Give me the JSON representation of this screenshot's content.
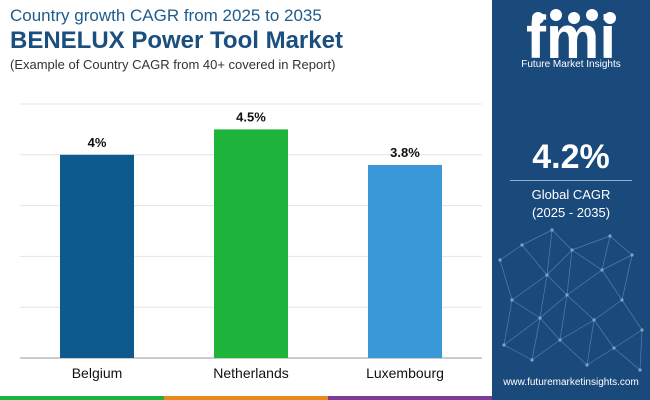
{
  "header": {
    "line1": "Country growth CAGR from 2025 to 2035",
    "line2": "BENELUX Power Tool Market",
    "subtitle": "(Example of Country CAGR from 40+ covered in Report)"
  },
  "chart_data": {
    "type": "bar",
    "categories": [
      "Belgium",
      "Netherlands",
      "Luxembourg"
    ],
    "values": [
      4,
      4.5,
      3.8
    ],
    "value_labels": [
      "4%",
      "4.5%",
      "3.8%"
    ],
    "ylim": [
      0,
      5
    ],
    "grid": true,
    "bar_colors": [
      "#0f5a8c",
      "#1eb43c",
      "#3a97d8"
    ]
  },
  "side_panel": {
    "brand": "fmi",
    "brand_caption": "Future Market Insights",
    "stat_value": "4.2%",
    "stat_label": "Global CAGR",
    "stat_period": "(2025 - 2035)",
    "website": "www.futuremarketinsights.com"
  },
  "colors": {
    "panel_bg": "#1a4a7c",
    "title": "#1b4f7e",
    "bottom_stripe": [
      "#1eb43c",
      "#e88a1a",
      "#7d3c98"
    ]
  }
}
